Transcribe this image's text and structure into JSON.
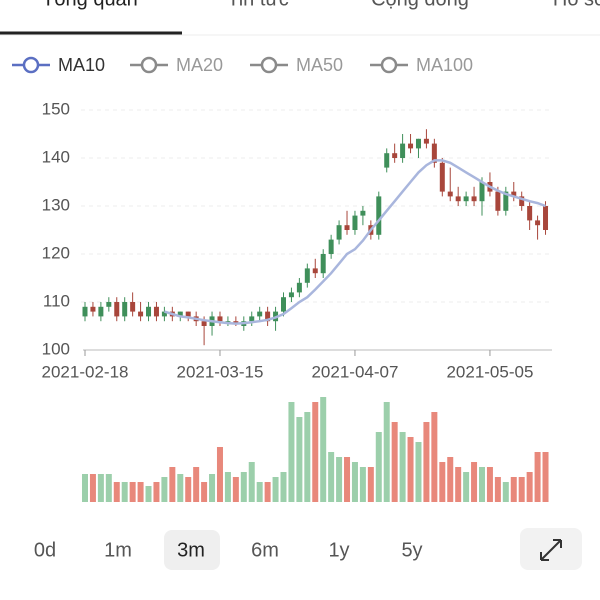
{
  "tabs": [
    "Tổng quan",
    "Tin tức",
    "Cộng đồng",
    "Hồ sơ"
  ],
  "legend": [
    {
      "name": "MA10",
      "color": "#5b6fc2"
    },
    {
      "name": "MA20",
      "color": "#8a8a8a"
    },
    {
      "name": "MA50",
      "color": "#8a8a8a"
    },
    {
      "name": "MA100",
      "color": "#8a8a8a"
    }
  ],
  "ranges": [
    "0d",
    "1m",
    "3m",
    "6m",
    "1y",
    "5y"
  ],
  "selected_range": "3m",
  "chart_data": {
    "type": "candlestick",
    "up_color": "#3f8f5a",
    "down_color": "#a8463b",
    "volume_up_color": "#9ccfab",
    "volume_down_color": "#e8887b",
    "ma_color": "#a9b6dd",
    "ylim": [
      100,
      150
    ],
    "yticks": [
      100,
      110,
      120,
      130,
      140,
      150
    ],
    "grid": true,
    "categories": [
      "2021-02-18",
      null,
      null,
      null,
      null,
      null,
      null,
      null,
      null,
      null,
      null,
      null,
      null,
      null,
      null,
      null,
      null,
      "2021-03-15",
      null,
      null,
      null,
      null,
      null,
      null,
      null,
      null,
      null,
      null,
      null,
      null,
      null,
      null,
      null,
      null,
      "2021-04-07",
      null,
      null,
      null,
      null,
      null,
      null,
      null,
      null,
      null,
      null,
      null,
      null,
      null,
      null,
      null,
      null,
      "2021-05-05",
      null,
      null,
      null,
      null,
      null,
      null,
      null
    ],
    "open": [
      107,
      109,
      107,
      109,
      110,
      107,
      110,
      108,
      107,
      109,
      107,
      108,
      107,
      108,
      107,
      106,
      105,
      107,
      106,
      106,
      105,
      106,
      107,
      108,
      106,
      108,
      111,
      112,
      114,
      117,
      116,
      120,
      123,
      126,
      125,
      128,
      126,
      124,
      138,
      141,
      140,
      143,
      142,
      144,
      143,
      139,
      133,
      132,
      131,
      132,
      131,
      135,
      133,
      129,
      133,
      132,
      130,
      127,
      130
    ],
    "high": [
      110,
      110,
      110,
      111,
      111,
      111,
      112,
      110,
      110,
      110,
      109,
      109,
      108,
      108,
      108,
      107,
      108,
      108,
      107,
      107,
      107,
      108,
      109,
      109,
      109,
      112,
      113,
      115,
      118,
      119,
      121,
      124,
      127,
      129,
      129,
      130,
      127,
      133,
      142,
      143,
      145,
      145,
      144,
      146,
      144,
      140,
      138,
      134,
      133,
      134,
      136,
      137,
      134,
      134,
      135,
      133,
      131,
      128,
      131
    ],
    "low": [
      106,
      107,
      106,
      108,
      106,
      106,
      107,
      106,
      106,
      106,
      106,
      106,
      106,
      106,
      105,
      101,
      103,
      105,
      105,
      105,
      104,
      105,
      106,
      105,
      104,
      107,
      110,
      111,
      113,
      115,
      115,
      119,
      122,
      124,
      124,
      126,
      123,
      123,
      137,
      139,
      139,
      141,
      140,
      142,
      138,
      132,
      131,
      130,
      130,
      130,
      128,
      132,
      128,
      128,
      131,
      129,
      125,
      123,
      124
    ],
    "close": [
      109,
      108,
      109,
      110,
      107,
      110,
      108,
      107,
      109,
      107,
      108,
      107,
      108,
      107,
      106,
      105,
      107,
      106,
      106,
      105.5,
      106,
      107,
      108,
      106,
      108,
      111,
      112,
      114,
      117,
      116,
      120,
      123,
      126,
      125,
      128,
      129,
      124,
      132,
      141,
      140,
      143,
      142,
      144,
      143,
      139,
      133,
      132,
      131,
      132,
      131,
      135,
      133,
      129,
      133,
      132,
      130,
      127,
      126,
      125
    ],
    "volume": [
      28,
      28,
      28,
      28,
      20,
      20,
      20,
      20,
      16,
      20,
      25,
      35,
      28,
      25,
      35,
      20,
      28,
      55,
      30,
      25,
      30,
      40,
      20,
      20,
      25,
      30,
      100,
      85,
      90,
      100,
      105,
      50,
      45,
      45,
      40,
      35,
      35,
      70,
      100,
      80,
      70,
      65,
      60,
      80,
      90,
      40,
      45,
      35,
      30,
      40,
      35,
      35,
      25,
      20,
      25,
      25,
      30,
      50,
      50
    ],
    "ma10": [
      null,
      null,
      null,
      null,
      null,
      null,
      null,
      null,
      null,
      null,
      108,
      107.5,
      107,
      106.8,
      106.5,
      106.2,
      106,
      105.8,
      105.6,
      105.5,
      105.6,
      105.8,
      106,
      106.3,
      106.8,
      107.5,
      108.7,
      110,
      111,
      112.6,
      114.3,
      116,
      118,
      120,
      121,
      122.8,
      125,
      127,
      129,
      131,
      133,
      135,
      137,
      138.5,
      139.5,
      139.5,
      139,
      138,
      137,
      136,
      135,
      134,
      133.2,
      132.5,
      132,
      131.5,
      131,
      130.6,
      130
    ]
  }
}
